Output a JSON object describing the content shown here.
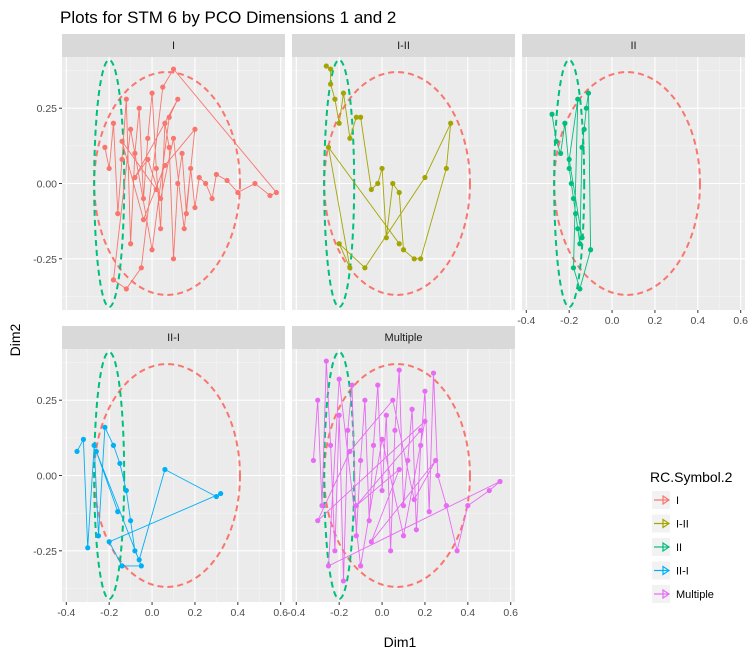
{
  "chart_data": {
    "type": "line",
    "title": "Plots for STM 6 by PCO Dimensions 1 and 2",
    "xlabel": "Dim1",
    "ylabel": "Dim2",
    "xlim": [
      -0.42,
      0.62
    ],
    "ylim": [
      -0.42,
      0.42
    ],
    "x_ticks": [
      -0.4,
      -0.2,
      0.0,
      0.2,
      0.4,
      0.6
    ],
    "x_tick_labels": [
      "-0.4",
      "-0.2",
      "0.0",
      "0.2",
      "0.4",
      "0.6"
    ],
    "y_ticks": [
      0.25,
      0.0,
      -0.25
    ],
    "y_tick_labels": [
      "0.25",
      "0.00",
      "-0.25"
    ],
    "grid": true,
    "legend_title": "RC.Symbol.2",
    "legend_position": "right",
    "facets": [
      "I",
      "I-II",
      "II",
      "II-I",
      "Multiple"
    ],
    "series": [
      {
        "name": "I",
        "color": "#F8766D",
        "ellipse": {
          "center": [
            0.07,
            0.0
          ],
          "rx": 0.34,
          "ry": 0.37
        },
        "x": [
          -0.22,
          -0.2,
          -0.18,
          -0.16,
          -0.14,
          -0.12,
          -0.1,
          -0.08,
          -0.06,
          -0.04,
          -0.02,
          0.0,
          0.02,
          0.04,
          0.06,
          0.08,
          0.1,
          0.12,
          0.14,
          0.16,
          0.18,
          0.2,
          0.22,
          0.25,
          0.28,
          0.3,
          0.35,
          0.4,
          0.48,
          0.55,
          0.58,
          0.1,
          0.05,
          -0.05,
          -0.12,
          -0.18,
          -0.1,
          0.0,
          0.08,
          0.12,
          -0.08,
          -0.02,
          0.04,
          0.1,
          0.15,
          0.2,
          0.06,
          -0.04,
          -0.14,
          0.02
        ],
        "y": [
          0.12,
          0.05,
          0.2,
          -0.1,
          0.08,
          0.28,
          -0.2,
          0.1,
          0.25,
          -0.05,
          0.15,
          0.3,
          0.05,
          -0.15,
          0.2,
          0.12,
          -0.25,
          0.0,
          0.1,
          -0.1,
          0.05,
          -0.08,
          0.02,
          0.0,
          -0.05,
          0.03,
          0.01,
          -0.03,
          0.0,
          -0.04,
          -0.03,
          0.38,
          0.32,
          -0.28,
          -0.35,
          -0.32,
          0.18,
          -0.22,
          0.22,
          0.28,
          0.02,
          0.08,
          -0.05,
          0.15,
          -0.15,
          0.18,
          0.06,
          -0.12,
          0.14,
          -0.02
        ]
      },
      {
        "name": "I-II",
        "color": "#A3A500",
        "ellipse": {
          "center": [
            -0.2,
            0.0
          ],
          "rx": 0.07,
          "ry": 0.41
        },
        "x": [
          -0.26,
          -0.24,
          -0.24,
          -0.22,
          -0.2,
          -0.18,
          -0.15,
          -0.12,
          -0.1,
          -0.05,
          -0.02,
          0.0,
          0.02,
          0.05,
          0.08,
          0.1,
          0.15,
          0.18,
          0.3,
          0.32,
          0.2,
          -0.08,
          -0.2,
          -0.15,
          -0.25,
          0.08
        ],
        "y": [
          0.39,
          0.38,
          0.33,
          0.28,
          0.2,
          0.3,
          0.15,
          0.22,
          0.22,
          -0.02,
          0.0,
          0.05,
          -0.18,
          0.0,
          -0.03,
          -0.22,
          -0.25,
          -0.25,
          0.05,
          0.2,
          0.02,
          -0.28,
          -0.2,
          -0.28,
          0.12,
          -0.2
        ]
      },
      {
        "name": "II",
        "color": "#00BF7D",
        "ellipse": {
          "center": [
            0.07,
            0.0
          ],
          "rx": 0.34,
          "ry": 0.37
        },
        "x": [
          -0.28,
          -0.26,
          -0.24,
          -0.22,
          -0.2,
          -0.19,
          -0.18,
          -0.17,
          -0.16,
          -0.15,
          -0.14,
          -0.13,
          -0.12,
          -0.11,
          -0.1,
          -0.15,
          -0.18,
          -0.16,
          -0.2,
          -0.14
        ],
        "y": [
          0.23,
          0.14,
          0.1,
          0.2,
          0.05,
          0.0,
          -0.05,
          -0.1,
          -0.15,
          -0.2,
          0.12,
          0.18,
          0.25,
          0.3,
          -0.22,
          -0.35,
          -0.28,
          0.28,
          0.08,
          -0.18
        ]
      },
      {
        "name": "II-I",
        "color": "#00B0F6",
        "ellipse": {
          "center": [
            -0.2,
            0.0
          ],
          "rx": 0.07,
          "ry": 0.41
        },
        "x": [
          -0.35,
          -0.32,
          -0.3,
          -0.27,
          -0.25,
          -0.22,
          -0.18,
          -0.15,
          -0.12,
          -0.1,
          -0.08,
          -0.06,
          0.06,
          0.3,
          0.32,
          -0.2,
          -0.14,
          -0.05,
          -0.26,
          -0.16
        ],
        "y": [
          0.08,
          0.12,
          -0.24,
          0.1,
          -0.2,
          0.16,
          0.1,
          0.04,
          -0.05,
          -0.15,
          -0.25,
          -0.28,
          0.02,
          -0.07,
          -0.06,
          -0.22,
          -0.3,
          -0.3,
          0.08,
          -0.12
        ]
      },
      {
        "name": "Multiple",
        "color": "#E76BF3",
        "ellipse": {
          "center": [
            0.07,
            0.0
          ],
          "rx": 0.34,
          "ry": 0.37
        },
        "x": [
          -0.32,
          -0.3,
          -0.28,
          -0.26,
          -0.24,
          -0.22,
          -0.2,
          -0.18,
          -0.16,
          -0.14,
          -0.12,
          -0.1,
          -0.08,
          -0.06,
          -0.04,
          -0.02,
          0.0,
          0.02,
          0.04,
          0.06,
          0.08,
          0.1,
          0.12,
          0.14,
          0.16,
          0.18,
          0.2,
          0.22,
          0.24,
          0.26,
          0.3,
          0.35,
          0.4,
          0.5,
          0.55,
          -0.25,
          -0.2,
          -0.1,
          0.0,
          0.1,
          0.2,
          -0.3,
          -0.15,
          0.05,
          0.15,
          0.25,
          -0.05,
          0.08,
          -0.12,
          0.18
        ],
        "y": [
          0.05,
          0.25,
          -0.1,
          0.38,
          0.1,
          -0.25,
          0.2,
          -0.35,
          0.15,
          0.3,
          -0.2,
          0.05,
          0.25,
          -0.15,
          0.1,
          0.3,
          -0.05,
          0.2,
          -0.25,
          0.15,
          0.35,
          -0.1,
          0.05,
          0.22,
          -0.18,
          0.1,
          0.28,
          -0.12,
          0.34,
          0.0,
          -0.1,
          -0.25,
          -0.1,
          -0.05,
          -0.02,
          -0.3,
          0.32,
          -0.3,
          0.12,
          -0.2,
          0.18,
          -0.15,
          0.08,
          0.25,
          -0.08,
          0.05,
          -0.22,
          0.02,
          -0.1,
          0.15
        ]
      }
    ],
    "reference_ellipses": [
      {
        "color": "#F8766D",
        "center": [
          0.07,
          0.0
        ],
        "rx": 0.34,
        "ry": 0.37
      },
      {
        "color": "#00BF7D",
        "center": [
          -0.2,
          0.0
        ],
        "rx": 0.07,
        "ry": 0.41
      }
    ]
  }
}
